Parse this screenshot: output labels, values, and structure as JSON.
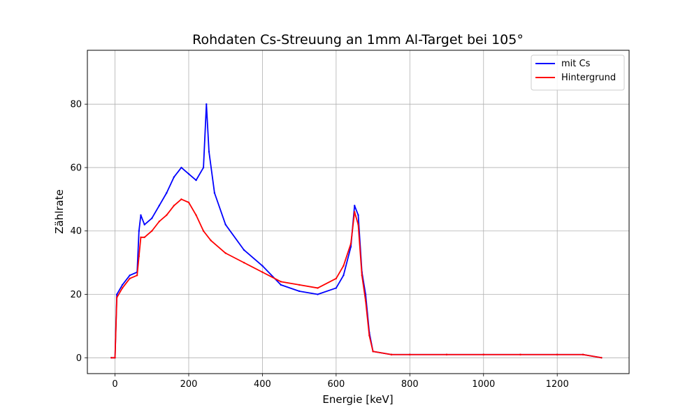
{
  "chart_data": {
    "type": "line",
    "title": "Rohdaten Cs-Streuung an 1mm Al-Target bei 105°",
    "xlabel": "Energie [keV]",
    "ylabel": "Zählrate",
    "xlim": [
      -75,
      1395
    ],
    "ylim": [
      -5,
      97
    ],
    "x_ticks": [
      0,
      200,
      400,
      600,
      800,
      1000,
      1200
    ],
    "y_ticks": [
      0,
      20,
      40,
      60,
      80
    ],
    "x_tick_labels": [
      "0",
      "200",
      "400",
      "600",
      "800",
      "1000",
      "1200"
    ],
    "y_tick_labels": [
      "0",
      "20",
      "40",
      "60",
      "80"
    ],
    "grid": true,
    "legend_position": "top-right",
    "series": [
      {
        "name": "mit Cs",
        "color": "#0000ff",
        "x": [
          -10,
          0,
          5,
          20,
          40,
          60,
          65,
          70,
          80,
          100,
          120,
          140,
          160,
          180,
          200,
          220,
          240,
          248,
          255,
          270,
          300,
          350,
          400,
          450,
          500,
          550,
          600,
          620,
          640,
          650,
          660,
          670,
          680,
          690,
          700,
          750,
          800,
          900,
          1000,
          1100,
          1200,
          1270,
          1320
        ],
        "y": [
          0,
          0,
          20,
          23,
          26,
          27,
          40,
          45,
          42,
          44,
          48,
          52,
          57,
          60,
          58,
          56,
          60,
          80,
          65,
          52,
          42,
          34,
          29,
          23,
          21,
          20,
          22,
          26,
          35,
          48,
          45,
          27,
          20,
          8,
          2,
          1,
          1,
          1,
          1,
          1,
          1,
          1,
          0
        ]
      },
      {
        "name": "Hintergrund",
        "color": "#ff0000",
        "x": [
          -10,
          0,
          5,
          20,
          40,
          60,
          65,
          70,
          80,
          100,
          120,
          140,
          160,
          180,
          200,
          220,
          240,
          260,
          300,
          350,
          400,
          450,
          500,
          550,
          600,
          620,
          640,
          650,
          660,
          670,
          680,
          690,
          700,
          750,
          800,
          900,
          1000,
          1100,
          1200,
          1270,
          1320
        ],
        "y": [
          0,
          0,
          19,
          22,
          25,
          26,
          32,
          38,
          38,
          40,
          43,
          45,
          48,
          50,
          49,
          45,
          40,
          37,
          33,
          30,
          27,
          24,
          23,
          22,
          25,
          29,
          36,
          46,
          42,
          26,
          18,
          7,
          2,
          1,
          1,
          1,
          1,
          1,
          1,
          1,
          0
        ]
      }
    ]
  }
}
